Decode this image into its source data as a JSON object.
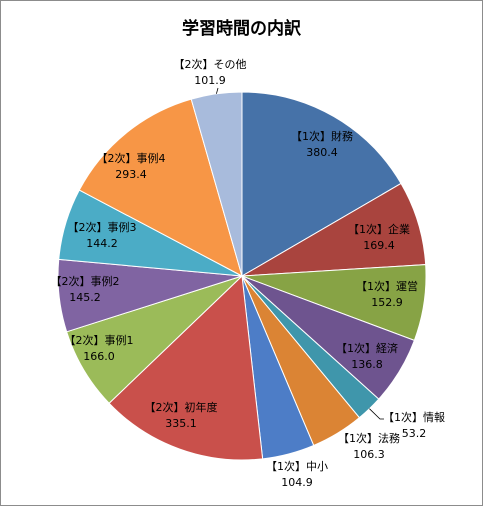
{
  "chart_data": {
    "type": "pie",
    "title": "学習時間の内訳",
    "slices": [
      {
        "label": "【1次】財務",
        "value": 380.4,
        "value_text": "380.4",
        "color": "#4672a8"
      },
      {
        "label": "【1次】企業",
        "value": 169.4,
        "value_text": "169.4",
        "color": "#a9443e"
      },
      {
        "label": "【1次】運営",
        "value": 152.9,
        "value_text": "152.9",
        "color": "#87a345"
      },
      {
        "label": "【1次】経済",
        "value": 136.8,
        "value_text": "136.8",
        "color": "#6e548f"
      },
      {
        "label": "【1次】情報",
        "value": 53.2,
        "value_text": "53.2",
        "color": "#3f96ab"
      },
      {
        "label": "【1次】法務",
        "value": 106.3,
        "value_text": "106.3",
        "color": "#db8434"
      },
      {
        "label": "【1次】中小",
        "value": 104.9,
        "value_text": "104.9",
        "color": "#4d7dc7"
      },
      {
        "label": "【2次】初年度",
        "value": 335.1,
        "value_text": "335.1",
        "color": "#c9504b"
      },
      {
        "label": "【2次】事例1",
        "value": 166.0,
        "value_text": "166.0",
        "color": "#9bbb59"
      },
      {
        "label": "【2次】事例2",
        "value": 145.2,
        "value_text": "145.2",
        "color": "#8064a2"
      },
      {
        "label": "【2次】事例3",
        "value": 144.2,
        "value_text": "144.2",
        "color": "#4bacc6"
      },
      {
        "label": "【2次】事例4",
        "value": 293.4,
        "value_text": "293.4",
        "color": "#f79646"
      },
      {
        "label": "【2次】その他",
        "value": 101.9,
        "value_text": "101.9",
        "color": "#a8bbdc"
      }
    ]
  }
}
